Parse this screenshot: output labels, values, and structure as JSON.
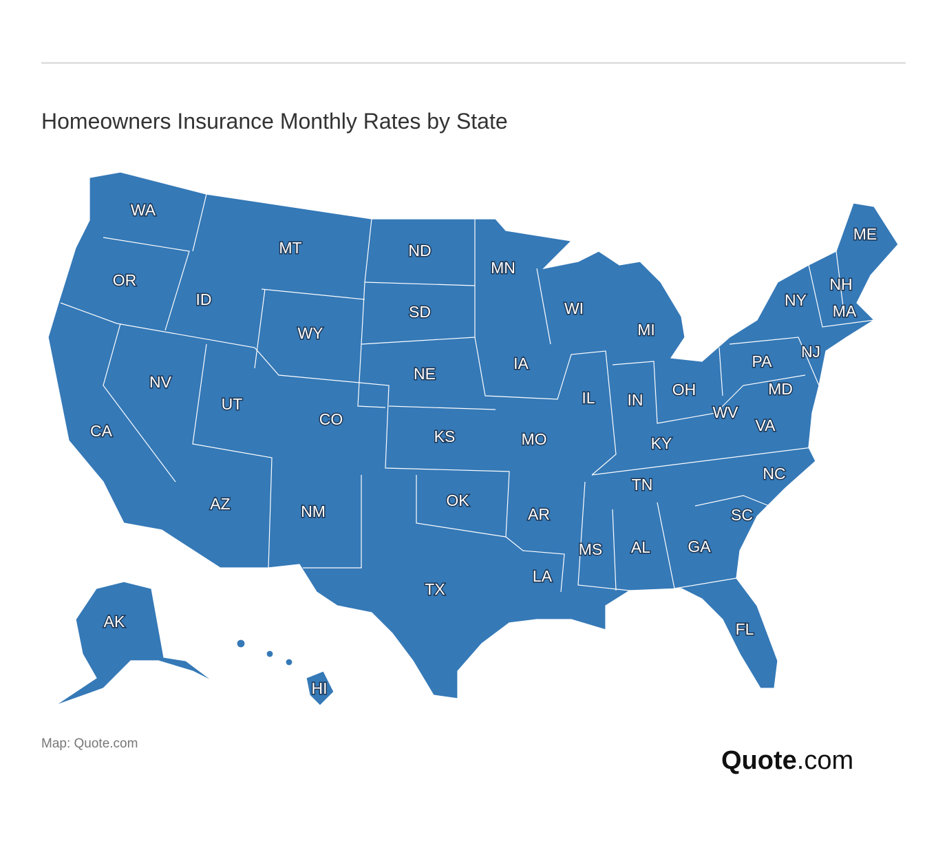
{
  "header": {
    "title": "Homeowners Insurance Monthly Rates by State"
  },
  "map": {
    "states": [
      "WA",
      "OR",
      "CA",
      "ID",
      "NV",
      "MT",
      "WY",
      "UT",
      "AZ",
      "CO",
      "NM",
      "ND",
      "SD",
      "NE",
      "KS",
      "OK",
      "TX",
      "MN",
      "IA",
      "MO",
      "AR",
      "LA",
      "WI",
      "IL",
      "MS",
      "MI",
      "IN",
      "KY",
      "TN",
      "AL",
      "OH",
      "WV",
      "VA",
      "NC",
      "SC",
      "GA",
      "FL",
      "PA",
      "NY",
      "NJ",
      "MD",
      "ME",
      "NH",
      "MA",
      "AK",
      "HI"
    ]
  },
  "footer": {
    "source": "Map: Quote.com",
    "brand": "Quote",
    "brand_suffix": ".com"
  }
}
